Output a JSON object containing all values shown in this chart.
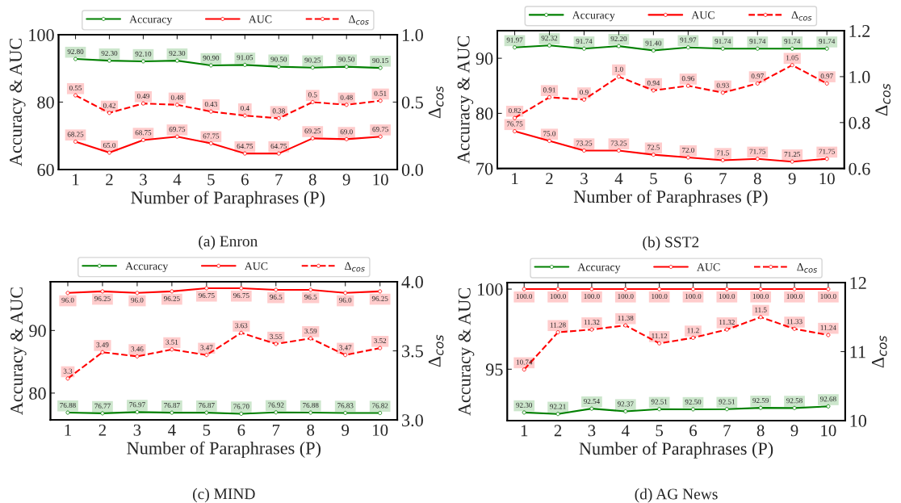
{
  "chart_data": [
    {
      "type": "line",
      "title": "(a) Enron",
      "xlabel": "Number of Paraphrases (P)",
      "ylabel": "Accuracy & AUC",
      "y2label": "Δ$_{cos}$",
      "marker": "circle",
      "categories": [
        "1",
        "2",
        "3",
        "4",
        "5",
        "6",
        "7",
        "8",
        "9",
        "10"
      ],
      "ylim": [
        60,
        100
      ],
      "yticks": [
        60,
        80,
        100
      ],
      "y2lim": [
        0.0,
        1.0
      ],
      "y2ticks": [
        {
          "value": 0,
          "label": "0.0"
        },
        0.5,
        {
          "value": 1,
          "label": "1.0"
        }
      ],
      "legend": "top",
      "grid": false,
      "series": [
        {
          "name": "Accuracy",
          "color": "#008000",
          "line_style": "solid",
          "values": [
            92.8,
            92.3,
            92.1,
            92.3,
            90.9,
            91.05,
            90.5,
            90.25,
            90.5,
            90.15
          ],
          "value_labels": [
            "92.80",
            "92.30",
            "92.10",
            "92.30",
            "90.90",
            "91.05",
            "90.50",
            "90.25",
            "90.50",
            "90.15"
          ]
        },
        {
          "name": "AUC",
          "color": "#ff0000",
          "line_style": "solid",
          "values": [
            68.25,
            65.0,
            68.75,
            69.75,
            67.75,
            64.75,
            64.75,
            69.25,
            69.0,
            69.75
          ],
          "value_labels": [
            "68.25",
            "65.0",
            "68.75",
            "69.75",
            "67.75",
            "64.75",
            "64.75",
            "69.25",
            "69.0",
            "69.75"
          ]
        },
        {
          "name": "Δ$_{cos}$",
          "color": "#ff0000",
          "line_style": "dashed",
          "axis": "y2",
          "values": [
            0.55,
            0.42,
            0.49,
            0.48,
            0.43,
            0.4,
            0.38,
            0.5,
            0.48,
            0.51
          ],
          "value_labels": [
            "0.55",
            "0.42",
            "0.49",
            "0.48",
            "0.43",
            "0.4",
            "0.38",
            "0.5",
            "0.48",
            "0.51"
          ]
        }
      ]
    },
    {
      "type": "line",
      "title": "(b) SST2",
      "xlabel": "Number of Paraphrases (P)",
      "ylabel": "Accuracy & AUC",
      "y2label": "Δ$_{cos}$",
      "marker": "circle",
      "categories": [
        "1",
        "2",
        "3",
        "4",
        "5",
        "6",
        "7",
        "8",
        "9",
        "10"
      ],
      "ylim": [
        70,
        95
      ],
      "yticks": [
        70,
        80,
        90
      ],
      "y2lim": [
        0.6,
        1.2
      ],
      "y2ticks": [
        0.6,
        0.8,
        {
          "value": 1,
          "label": "1.0"
        },
        1.2
      ],
      "legend": "top",
      "grid": false,
      "series": [
        {
          "name": "Accuracy",
          "color": "#008000",
          "line_style": "solid",
          "values": [
            91.97,
            92.32,
            91.74,
            92.2,
            91.4,
            91.97,
            91.74,
            91.74,
            91.74,
            91.74
          ],
          "value_labels": [
            "91.97",
            "92.32",
            "91.74",
            "92.20",
            "91.40",
            "91.97",
            "91.74",
            "91.74",
            "91.74",
            "91.74"
          ]
        },
        {
          "name": "AUC",
          "color": "#ff0000",
          "line_style": "solid",
          "values": [
            76.75,
            75.0,
            73.25,
            73.25,
            72.5,
            72.0,
            71.5,
            71.75,
            71.25,
            71.75
          ],
          "value_labels": [
            "76.75",
            "75.0",
            "73.25",
            "73.25",
            "72.5",
            "72.0",
            "71.5",
            "71.75",
            "71.25",
            "71.75"
          ]
        },
        {
          "name": "Δ$_{cos}$",
          "color": "#ff0000",
          "line_style": "dashed",
          "axis": "y2",
          "values": [
            0.82,
            0.91,
            0.9,
            1.0,
            0.94,
            0.96,
            0.93,
            0.97,
            1.05,
            0.97
          ],
          "value_labels": [
            "0.82",
            "0.91",
            "0.9",
            "1.0",
            "0.94",
            "0.96",
            "0.93",
            "0.97",
            "1.05",
            "0.97"
          ]
        }
      ]
    },
    {
      "type": "line",
      "title": "(c) MIND",
      "xlabel": "Number of Paraphrases (P)",
      "ylabel": "Accuracy & AUC",
      "y2label": "Δ$_{cos}$",
      "marker": "circle",
      "categories": [
        "1",
        "2",
        "3",
        "4",
        "5",
        "6",
        "7",
        "8",
        "9",
        "10"
      ],
      "ylim": [
        75.7,
        97.8
      ],
      "yticks": [
        80,
        90
      ],
      "y2lim": [
        3.0,
        4.0
      ],
      "y2ticks": [
        {
          "value": 3,
          "label": "3.0"
        },
        3.5,
        {
          "value": 4,
          "label": "4.0"
        }
      ],
      "legend": "top",
      "grid": false,
      "series": [
        {
          "name": "Accuracy",
          "color": "#008000",
          "line_style": "solid",
          "values": [
            76.88,
            76.77,
            76.97,
            76.87,
            76.87,
            76.7,
            76.92,
            76.88,
            76.83,
            76.82
          ],
          "value_labels": [
            "76.88",
            "76.77",
            "76.97",
            "76.87",
            "76.87",
            "76.70",
            "76.92",
            "76.88",
            "76.83",
            "76.82"
          ]
        },
        {
          "name": "AUC",
          "color": "#ff0000",
          "line_style": "solid",
          "values": [
            96.0,
            96.25,
            96.0,
            96.25,
            96.75,
            96.75,
            96.5,
            96.5,
            96.0,
            96.25
          ],
          "value_labels": [
            "96.0",
            "96.25",
            "96.0",
            "96.25",
            "96.75",
            "96.75",
            "96.5",
            "96.5",
            "96.0",
            "96.25"
          ]
        },
        {
          "name": "Δ$_{cos}$",
          "color": "#ff0000",
          "line_style": "dashed",
          "axis": "y2",
          "values": [
            3.3,
            3.49,
            3.46,
            3.51,
            3.47,
            3.63,
            3.55,
            3.59,
            3.47,
            3.52
          ],
          "value_labels": [
            "3.3",
            "3.49",
            "3.46",
            "3.51",
            "3.47",
            "3.63",
            "3.55",
            "3.59",
            "3.47",
            "3.52"
          ]
        }
      ]
    },
    {
      "type": "line",
      "title": "(d) AG News",
      "xlabel": "Number of Paraphrases (P)",
      "ylabel": "Accuracy & AUC",
      "y2label": "Δ$_{cos}$",
      "marker": "circle",
      "categories": [
        "1",
        "2",
        "3",
        "4",
        "5",
        "6",
        "7",
        "8",
        "9",
        "10"
      ],
      "ylim": [
        91.8,
        100.4
      ],
      "yticks": [
        95,
        100
      ],
      "y2lim": [
        10,
        12
      ],
      "y2ticks": [
        10,
        11,
        12
      ],
      "legend": "top",
      "grid": false,
      "series": [
        {
          "name": "Accuracy",
          "color": "#008000",
          "line_style": "solid",
          "values": [
            92.3,
            92.21,
            92.54,
            92.37,
            92.51,
            92.5,
            92.51,
            92.59,
            92.58,
            92.68
          ],
          "value_labels": [
            "92.30",
            "92.21",
            "92.54",
            "92.37",
            "92.51",
            "92.50",
            "92.51",
            "92.59",
            "92.58",
            "92.68"
          ]
        },
        {
          "name": "AUC",
          "color": "#ff0000",
          "line_style": "solid",
          "values": [
            100.0,
            100.0,
            100.0,
            100.0,
            100.0,
            100.0,
            100.0,
            100.0,
            100.0,
            100.0
          ],
          "value_labels": [
            "100.0",
            "100.0",
            "100.0",
            "100.0",
            "100.0",
            "100.0",
            "100.0",
            "100.0",
            "100.0",
            "100.0"
          ]
        },
        {
          "name": "Δ$_{cos}$",
          "color": "#ff0000",
          "line_style": "dashed",
          "axis": "y2",
          "values": [
            10.74,
            11.28,
            11.32,
            11.38,
            11.12,
            11.2,
            11.32,
            11.5,
            11.33,
            11.24
          ],
          "value_labels": [
            "10.74",
            "11.28",
            "11.32",
            "11.38",
            "11.12",
            "11.2",
            "11.32",
            "11.5",
            "11.33",
            "11.24"
          ]
        }
      ]
    }
  ]
}
